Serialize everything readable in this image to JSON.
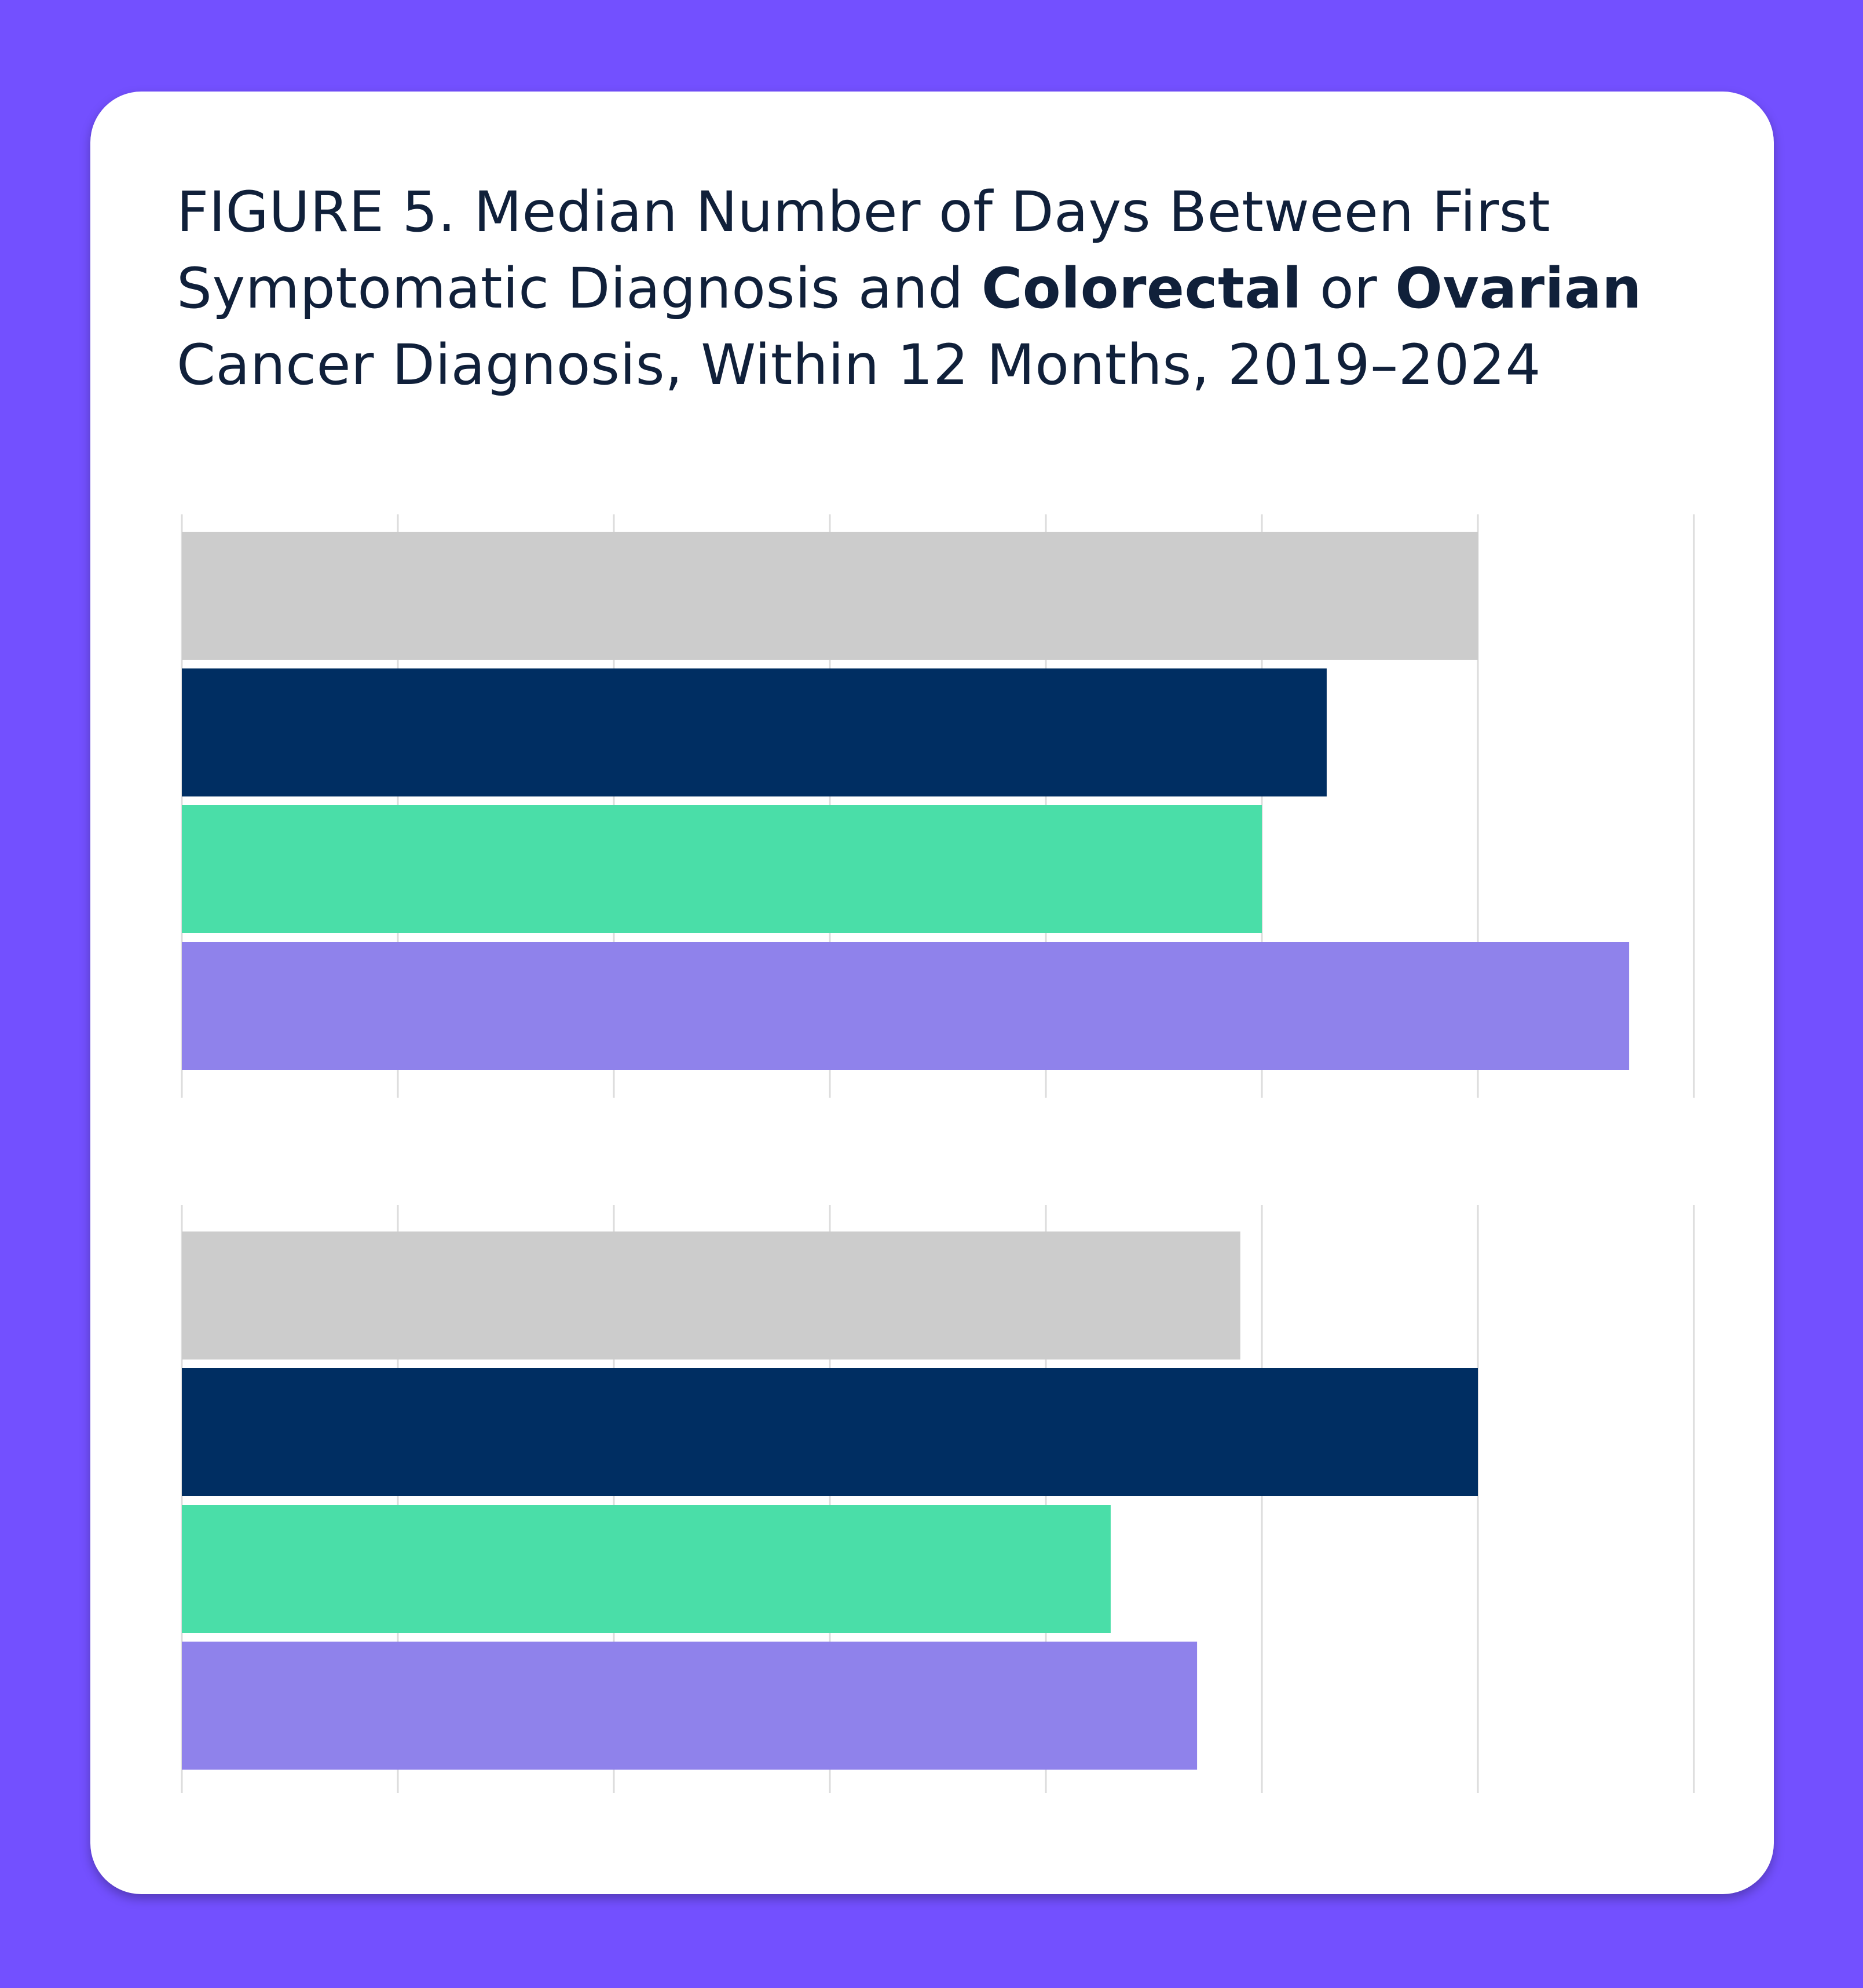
{
  "colors": {
    "frame": "#7350FF",
    "card": "#FFFFFF",
    "title_text": "#10203A",
    "gridline": "#DCDCDC"
  },
  "title": {
    "part1": "FIGURE 5. Median Number of Days Between First Symptomatic Diagnosis and ",
    "bold1": "Colorectal",
    "part2": " or ",
    "bold2": "Ovarian",
    "part3": " Cancer Diagnosis, Within 12 Months, 2019–2024"
  },
  "chart_data": [
    {
      "type": "bar",
      "orientation": "horizontal",
      "panel": "Colorectal",
      "title": "",
      "xlabel": "",
      "ylabel": "",
      "grid": true,
      "gridlines": 7,
      "xlim": [
        0,
        7
      ],
      "series_colors": [
        "#CCCCCC",
        "#002E62",
        "#4ADEA8",
        "#8F82EB"
      ],
      "values": [
        6.0,
        5.3,
        5.0,
        6.7
      ]
    },
    {
      "type": "bar",
      "orientation": "horizontal",
      "panel": "Ovarian",
      "title": "",
      "xlabel": "",
      "ylabel": "",
      "grid": true,
      "gridlines": 7,
      "xlim": [
        0,
        7
      ],
      "series_colors": [
        "#CCCCCC",
        "#002E62",
        "#4ADEA8",
        "#8F82EB"
      ],
      "values": [
        4.9,
        6.0,
        4.3,
        4.7
      ]
    }
  ]
}
